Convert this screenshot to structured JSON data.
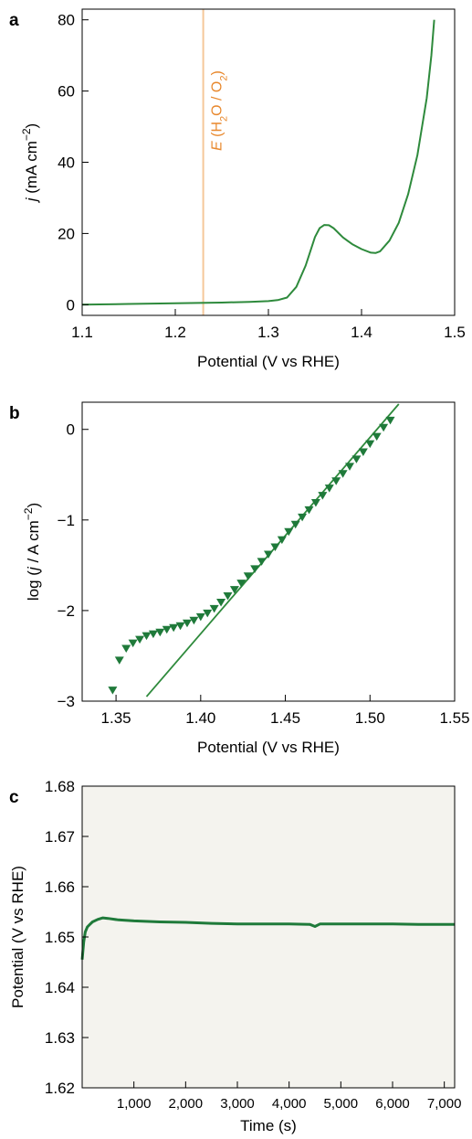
{
  "chart_data": [
    {
      "panel_label": "a",
      "type": "line",
      "xlabel": "Potential (V vs RHE)",
      "ylabel": {
        "italic": "j",
        "text": " (mA cm",
        "sup": "−2",
        "close": ")"
      },
      "xlim": [
        1.1,
        1.5
      ],
      "ylim": [
        -3,
        83
      ],
      "xticks": [
        1.1,
        1.2,
        1.3,
        1.4,
        1.5
      ],
      "xtick_labels": [
        "1.1",
        "1.2",
        "1.3",
        "1.4",
        "1.5"
      ],
      "yticks": [
        0,
        20,
        40,
        60,
        80
      ],
      "ytick_labels": [
        "0",
        "20",
        "40",
        "60",
        "80"
      ],
      "grid": false,
      "colors": {
        "curve": "#2e8a3c",
        "reference_line": "#f5c89a",
        "reference_text": "#e8882d"
      },
      "reference_line": {
        "x": 1.23,
        "label": {
          "italic": "E",
          "text": " (H",
          "sub1": "2",
          "mid": "O / O",
          "sub2": "2",
          "close": ")"
        }
      },
      "series": [
        {
          "x": [
            1.1,
            1.15,
            1.2,
            1.25,
            1.28,
            1.3,
            1.31,
            1.32,
            1.33,
            1.34,
            1.345,
            1.35,
            1.355,
            1.36,
            1.365,
            1.37,
            1.375,
            1.38,
            1.39,
            1.4,
            1.41,
            1.415,
            1.42,
            1.43,
            1.44,
            1.45,
            1.46,
            1.465,
            1.47,
            1.475,
            1.478
          ],
          "y": [
            0.0,
            0.2,
            0.4,
            0.6,
            0.8,
            1.0,
            1.3,
            2.0,
            5.0,
            11.0,
            15.0,
            19.0,
            21.5,
            22.4,
            22.3,
            21.5,
            20.2,
            18.9,
            17.0,
            15.6,
            14.6,
            14.5,
            15.0,
            18.0,
            23.0,
            31.0,
            42.0,
            50.0,
            58.0,
            70.0,
            80.0
          ]
        }
      ]
    },
    {
      "panel_label": "b",
      "type": "scatter",
      "xlabel": "Potential (V vs RHE)",
      "ylabel": {
        "prefix": "log (",
        "italic": "j",
        "text": " / A cm",
        "sup": "−2",
        "close": ")"
      },
      "xlim": [
        1.33,
        1.55
      ],
      "ylim": [
        -3.0,
        0.3
      ],
      "xticks": [
        1.35,
        1.4,
        1.45,
        1.5,
        1.55
      ],
      "xtick_labels": [
        "1.35",
        "1.40",
        "1.45",
        "1.50",
        "1.55"
      ],
      "yticks": [
        -3,
        -2,
        -1,
        0
      ],
      "ytick_labels": [
        "−3",
        "−2",
        "−1",
        "0"
      ],
      "grid": false,
      "colors": {
        "markers": "#1f7a3a",
        "fit_line": "#2e8a3c"
      },
      "marker": "triangle-down",
      "series": [
        {
          "x": [
            1.348,
            1.352,
            1.356,
            1.36,
            1.364,
            1.368,
            1.372,
            1.376,
            1.38,
            1.384,
            1.388,
            1.392,
            1.396,
            1.4,
            1.404,
            1.408,
            1.412,
            1.416,
            1.42,
            1.424,
            1.428,
            1.432,
            1.436,
            1.44,
            1.444,
            1.448,
            1.452,
            1.456,
            1.46,
            1.464,
            1.468,
            1.472,
            1.476,
            1.48,
            1.484,
            1.488,
            1.492,
            1.496,
            1.5,
            1.504,
            1.508,
            1.512
          ],
          "y": [
            -2.88,
            -2.55,
            -2.42,
            -2.36,
            -2.32,
            -2.28,
            -2.26,
            -2.24,
            -2.21,
            -2.19,
            -2.17,
            -2.14,
            -2.11,
            -2.07,
            -2.03,
            -1.98,
            -1.91,
            -1.84,
            -1.77,
            -1.7,
            -1.62,
            -1.54,
            -1.46,
            -1.38,
            -1.3,
            -1.22,
            -1.13,
            -1.05,
            -0.97,
            -0.89,
            -0.81,
            -0.73,
            -0.65,
            -0.57,
            -0.49,
            -0.41,
            -0.33,
            -0.25,
            -0.16,
            -0.08,
            0.02,
            0.1
          ]
        }
      ],
      "fit_line": {
        "x": [
          1.368,
          1.517
        ],
        "y": [
          -2.95,
          0.28
        ]
      }
    },
    {
      "panel_label": "c",
      "type": "line",
      "xlabel": "Time (s)",
      "ylabel": {
        "text": "Potential (V vs RHE)"
      },
      "xlim": [
        0,
        7200
      ],
      "ylim": [
        1.62,
        1.68
      ],
      "xticks": [
        1000,
        2000,
        3000,
        4000,
        5000,
        6000,
        7000
      ],
      "xtick_labels": [
        "1,000",
        "2,000",
        "3,000",
        "4,000",
        "5,000",
        "6,000",
        "7,000"
      ],
      "yticks": [
        1.62,
        1.63,
        1.64,
        1.65,
        1.66,
        1.67,
        1.68
      ],
      "ytick_labels": [
        "1.62",
        "1.63",
        "1.64",
        "1.65",
        "1.66",
        "1.67",
        "1.68"
      ],
      "grid": false,
      "colors": {
        "curve": "#1f7a3a",
        "plot_background": "#f4f3ee"
      },
      "series": [
        {
          "x": [
            0,
            30,
            60,
            100,
            150,
            200,
            300,
            400,
            500,
            700,
            1000,
            1500,
            2000,
            2500,
            3000,
            3500,
            4000,
            4400,
            4500,
            4600,
            5000,
            5500,
            6000,
            6500,
            7000,
            7200
          ],
          "y": [
            1.6455,
            1.649,
            1.651,
            1.652,
            1.6525,
            1.653,
            1.6535,
            1.6538,
            1.6537,
            1.6534,
            1.6532,
            1.653,
            1.6529,
            1.6527,
            1.6526,
            1.6526,
            1.6526,
            1.6525,
            1.6521,
            1.6526,
            1.6526,
            1.6526,
            1.6526,
            1.6525,
            1.6525,
            1.6525
          ]
        }
      ]
    }
  ]
}
